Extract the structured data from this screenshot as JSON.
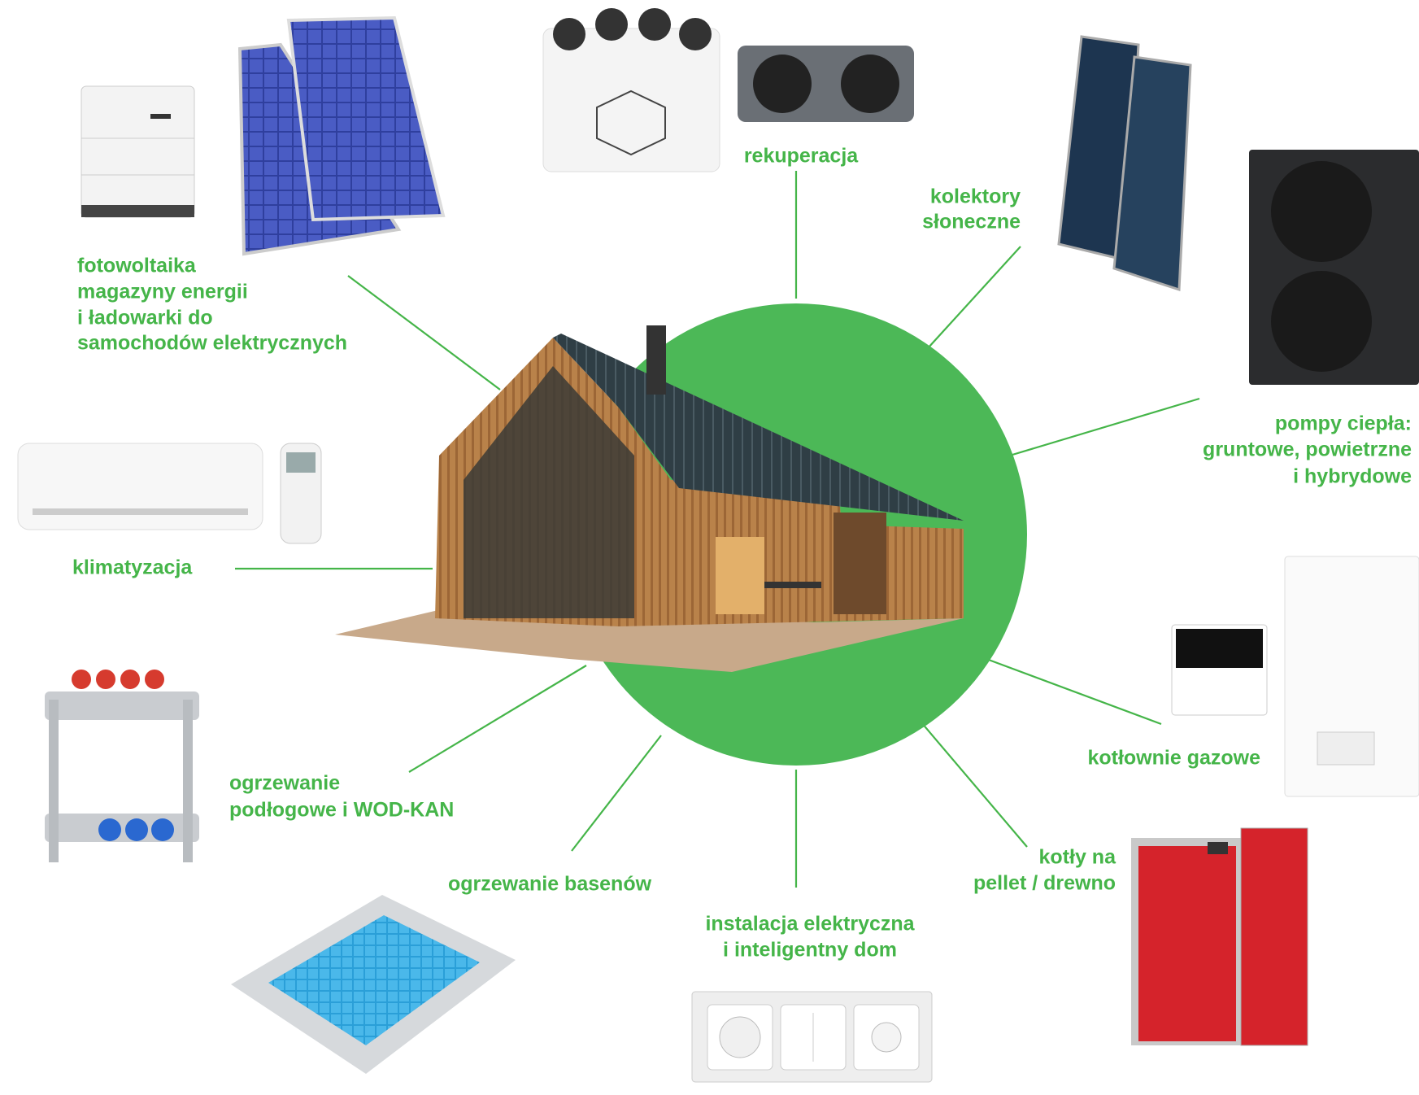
{
  "labels": [
    {
      "lines": [
        "rekuperacja"
      ]
    },
    {
      "lines": [
        "kolektory",
        "słoneczne"
      ]
    },
    {
      "lines": [
        "fotowoltaika",
        "magazyny energii",
        "i ładowarki do",
        "samochodów elektrycznych"
      ]
    },
    {
      "lines": [
        "pompy ciepła:",
        "gruntowe, powietrzne",
        "i hybrydowe"
      ]
    },
    {
      "lines": [
        "klimatyzacja"
      ]
    },
    {
      "lines": [
        "kotłownie gazowe"
      ]
    },
    {
      "lines": [
        "ogrzewanie",
        "podłogowe i WOD-KAN"
      ]
    },
    {
      "lines": [
        "ogrzewanie basenów"
      ]
    },
    {
      "lines": [
        "instalacja elektryczna",
        "i inteligentny dom"
      ]
    },
    {
      "lines": [
        "kotły na",
        "pellet / drewno"
      ]
    }
  ]
}
